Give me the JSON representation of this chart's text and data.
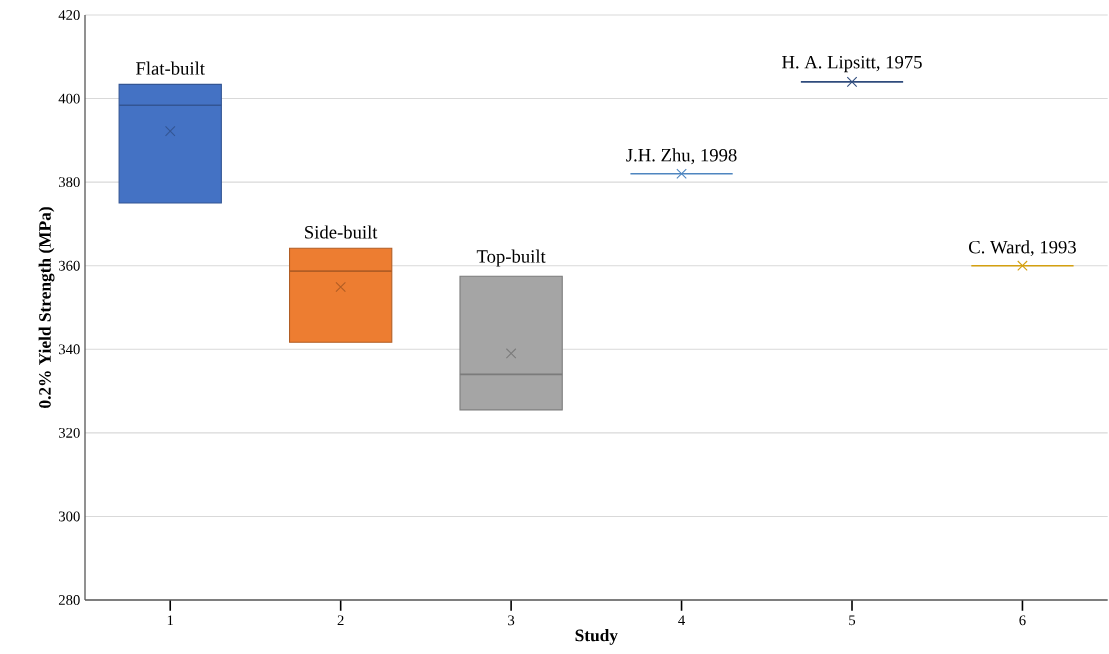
{
  "chart_data": {
    "type": "box",
    "xlabel": "Study",
    "ylabel": "0.2% Yield Strength (MPa)",
    "categories": [
      "1",
      "2",
      "3",
      "4",
      "5",
      "6"
    ],
    "boxes": [
      {
        "low": 375,
        "q1": 375,
        "median": 398.4,
        "q3": 403.4,
        "high": 403.4,
        "mean": 392.2
      },
      {
        "low": 341.7,
        "q1": 341.7,
        "median": 358.7,
        "q3": 364.2,
        "high": 364.2,
        "mean": 354.9
      },
      {
        "low": 325.5,
        "q1": 325.5,
        "median": 334,
        "q3": 357.5,
        "high": 357.5,
        "mean": 339
      },
      {
        "low": 382,
        "q1": 382,
        "median": 382,
        "q3": 382,
        "high": 382,
        "mean": 382
      },
      {
        "low": 404,
        "q1": 404,
        "median": 404,
        "q3": 404,
        "high": 404,
        "mean": 404
      },
      {
        "low": 360,
        "q1": 360,
        "median": 360,
        "q3": 360,
        "high": 360,
        "mean": 360
      }
    ],
    "colors": [
      "#4472c4",
      "#ed7d31",
      "#a5a5a5",
      "#4f86c0",
      "#2f4b7c",
      "#d4a010"
    ],
    "annotations": [
      "Flat-built",
      "Side-built",
      "Top-built",
      "J.H. Zhu, 1998",
      "H. A. Lipsitt, 1975",
      "C. Ward, 1993"
    ],
    "ylim": [
      280,
      420
    ],
    "yticks": [
      280,
      300,
      320,
      340,
      360,
      380,
      400,
      420
    ],
    "grid": "y",
    "marker": "cross"
  }
}
